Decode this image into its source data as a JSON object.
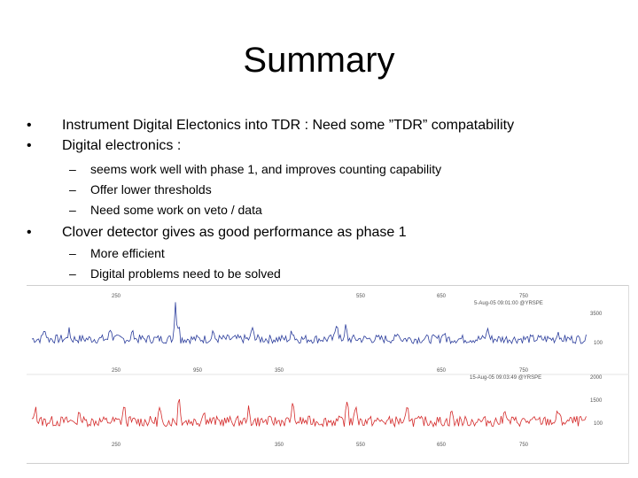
{
  "slide": {
    "title": "Summary",
    "bullets": [
      {
        "text": "Instrument Digital Electonics into TDR : Need some ”TDR” compatability",
        "sub": []
      },
      {
        "text": "Digital electronics :",
        "sub": [
          "seems work well with phase 1, and improves counting capability",
          "Offer lower thresholds",
          "Need some work on veto / data"
        ]
      },
      {
        "text": "Clover detector gives as good performance as phase 1",
        "sub": [
          "More efficient",
          "Digital problems need to be solved"
        ]
      }
    ],
    "bullet_char": "•",
    "dash_char": "–"
  },
  "spectra": {
    "top": {
      "stamp": "5-Aug-05 09:01:00 @YRSPE",
      "x_ticks": [
        "250",
        "550",
        "650",
        "750"
      ],
      "y_ticks": [
        "3500",
        "100"
      ],
      "color": "#2b3d9c"
    },
    "bottom": {
      "stamp": "15-Aug-05 09:03:49 @YRSPE",
      "x_ticks_top": [
        "250",
        "950",
        "350",
        "650",
        "750"
      ],
      "x_ticks_bottom": [
        "250",
        "350",
        "550",
        "650",
        "750"
      ],
      "y_ticks": [
        "2000",
        "1500",
        "100"
      ],
      "color": "#d42a2a"
    }
  }
}
